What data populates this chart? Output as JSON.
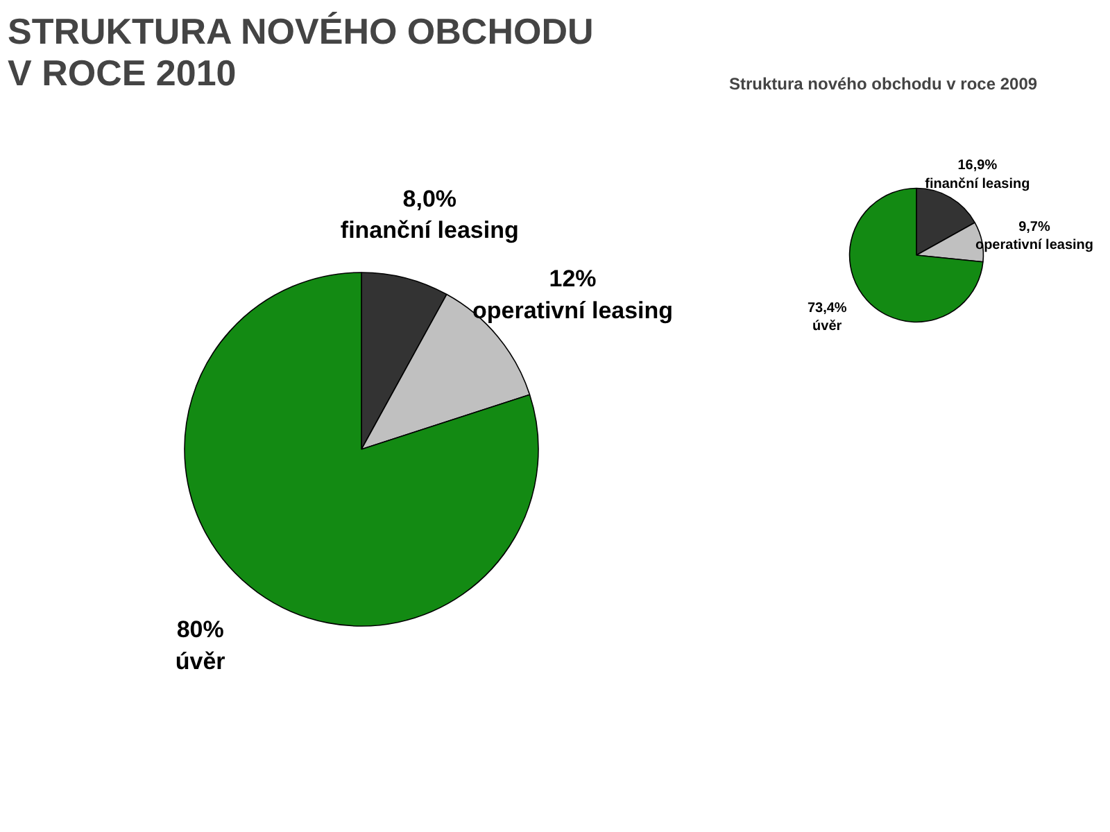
{
  "chart_data": [
    {
      "type": "pie",
      "title": "STRUKTURA NOVÉHO OBCHODU\nV ROCE 2010",
      "categories": [
        "finanční leasing",
        "operativní leasing",
        "úvěr"
      ],
      "values": [
        8.0,
        12,
        80
      ],
      "colors": [
        "#333333",
        "#c0c0c0",
        "#138a13"
      ],
      "value_labels": [
        "8,0%",
        "12%",
        "80%"
      ]
    },
    {
      "type": "pie",
      "title": "Struktura nového obchodu v roce 2009",
      "categories": [
        "finanční leasing",
        "operativní leasing",
        "úvěr"
      ],
      "values": [
        16.9,
        9.7,
        73.4
      ],
      "colors": [
        "#333333",
        "#c0c0c0",
        "#138a13"
      ],
      "value_labels": [
        "16,9%",
        "9,7%",
        "73,4%"
      ]
    }
  ]
}
